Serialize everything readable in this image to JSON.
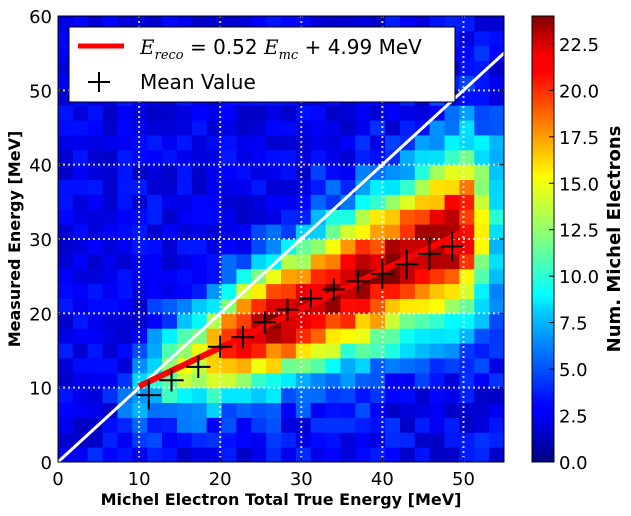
{
  "chart_data": {
    "type": "heatmap",
    "xlabel": "Michel Electron Total True Energy [MeV]",
    "ylabel": "Measured Energy [MeV]",
    "xlim": [
      0,
      55
    ],
    "ylim": [
      0,
      60
    ],
    "xticks": [
      "0",
      "10",
      "20",
      "30",
      "40",
      "50"
    ],
    "yticks": [
      "0",
      "10",
      "20",
      "30",
      "40",
      "50",
      "60"
    ],
    "grid": true,
    "colorbar": {
      "label": "Num. Michel Electrons",
      "range": [
        0,
        24
      ],
      "ticks": [
        "0.0",
        "2.5",
        "5.0",
        "7.5",
        "10.0",
        "12.5",
        "15.0",
        "17.5",
        "20.0",
        "22.5"
      ],
      "colormap": "jet"
    },
    "bin_width": 1.8333,
    "bin_height": 2.0,
    "legend_placement": "top-left",
    "fit_line": {
      "label_prefix": "E",
      "label_sub_reco": "reco",
      "label_mid": " = 0.52 ",
      "label_sub_mc": "mc",
      "label_suffix": " + 4.99 MeV",
      "slope": 0.52,
      "intercept": 4.99,
      "x_range": [
        10,
        50
      ],
      "color": "#ff0000"
    },
    "diagonal": {
      "x_range": [
        0,
        55
      ],
      "color": "#ffffff"
    },
    "mean_series": {
      "name": "Mean Value",
      "points": [
        {
          "x": 11.2,
          "y": 9.0,
          "xerr": 1.5,
          "yerr": 2.0
        },
        {
          "x": 14.0,
          "y": 11.0,
          "xerr": 1.5,
          "yerr": 1.5
        },
        {
          "x": 17.3,
          "y": 12.8,
          "xerr": 1.5,
          "yerr": 1.5
        },
        {
          "x": 20.0,
          "y": 15.5,
          "xerr": 1.5,
          "yerr": 1.5
        },
        {
          "x": 22.8,
          "y": 16.8,
          "xerr": 1.4,
          "yerr": 1.5
        },
        {
          "x": 25.5,
          "y": 18.8,
          "xerr": 1.4,
          "yerr": 1.5
        },
        {
          "x": 28.3,
          "y": 20.5,
          "xerr": 1.4,
          "yerr": 1.5
        },
        {
          "x": 31.2,
          "y": 22.0,
          "xerr": 1.4,
          "yerr": 1.2
        },
        {
          "x": 34.0,
          "y": 23.2,
          "xerr": 1.4,
          "yerr": 1.5
        },
        {
          "x": 37.0,
          "y": 24.3,
          "xerr": 1.4,
          "yerr": 1.5
        },
        {
          "x": 40.0,
          "y": 25.3,
          "xerr": 1.4,
          "yerr": 2.0
        },
        {
          "x": 43.0,
          "y": 26.6,
          "xerr": 1.4,
          "yerr": 2.0
        },
        {
          "x": 45.8,
          "y": 28.0,
          "xerr": 1.4,
          "yerr": 2.2
        },
        {
          "x": 48.6,
          "y": 29.0,
          "xerr": 1.4,
          "yerr": 2.0
        }
      ]
    }
  }
}
